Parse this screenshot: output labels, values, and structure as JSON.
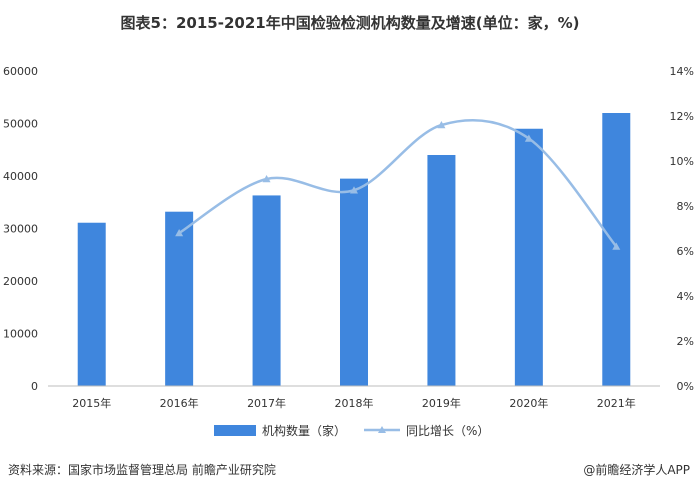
{
  "title": "图表5：2015-2021年中国检验检测机构数量及增速(单位：家，%)",
  "footer": {
    "source": "资料来源：国家市场监督管理总局 前瞻产业研究院",
    "credit": "@前瞻经济学人APP"
  },
  "chart_data": {
    "type": "bar",
    "title": "图表5：2015-2021年中国检验检测机构数量及增速(单位：家，%)",
    "categories": [
      "2015年",
      "2016年",
      "2017年",
      "2018年",
      "2019年",
      "2020年",
      "2021年"
    ],
    "series": [
      {
        "name": "机构数量（家）",
        "type": "bar",
        "axis": "left",
        "values": [
          31100,
          33200,
          36300,
          39500,
          44000,
          49000,
          52000
        ]
      },
      {
        "name": "同比增长（%）",
        "type": "line",
        "axis": "right",
        "values": [
          null,
          6.8,
          9.2,
          8.7,
          11.6,
          11.0,
          6.2
        ]
      }
    ],
    "y_left": {
      "min": 0,
      "max": 60000,
      "ticks": [
        "0",
        "10000",
        "20000",
        "30000",
        "40000",
        "50000",
        "60000"
      ]
    },
    "y_right": {
      "min": 0,
      "max": 14,
      "ticks": [
        "0%",
        "2%",
        "4%",
        "6%",
        "8%",
        "10%",
        "12%",
        "14%"
      ]
    },
    "grid": false,
    "legend": "bottom",
    "colors": {
      "bar": "#3f86dd",
      "line": "#98bde6"
    }
  }
}
